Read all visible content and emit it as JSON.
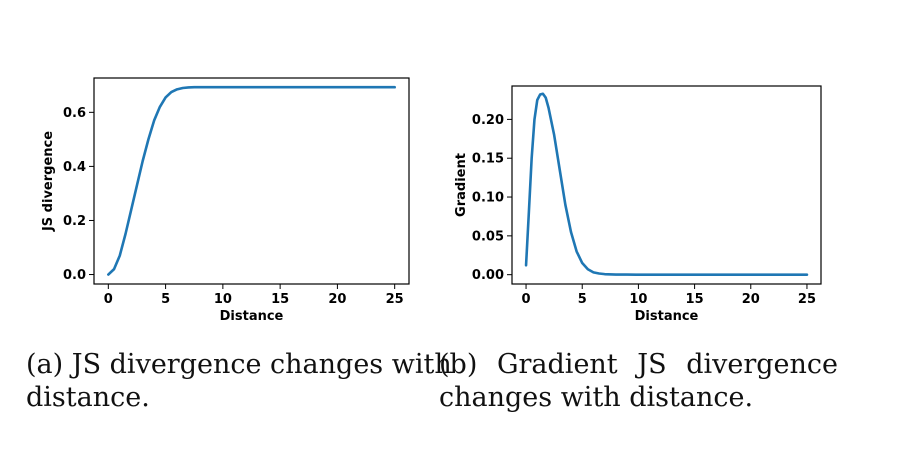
{
  "chart_data": [
    {
      "type": "line",
      "xlabel": "Distance",
      "ylabel": "JS divergence",
      "xlim": [
        -1.25,
        26.25
      ],
      "ylim": [
        -0.035,
        0.727
      ],
      "xticks": [
        0,
        5,
        10,
        15,
        20,
        25
      ],
      "yticks": [
        0.0,
        0.2,
        0.4,
        0.6
      ],
      "ytick_labels": [
        "0.0",
        "0.2",
        "0.4",
        "0.6"
      ],
      "color": "#1f77b4",
      "grid": false,
      "series": [
        {
          "x": [
            0,
            0.5,
            1,
            1.5,
            2,
            2.5,
            3,
            3.5,
            4,
            4.5,
            5,
            5.5,
            6,
            6.5,
            7,
            7.5,
            8,
            9,
            10,
            12,
            15,
            20,
            25
          ],
          "y": [
            0.0,
            0.02,
            0.07,
            0.15,
            0.24,
            0.33,
            0.42,
            0.5,
            0.57,
            0.62,
            0.655,
            0.675,
            0.685,
            0.69,
            0.692,
            0.693,
            0.693,
            0.693,
            0.693,
            0.693,
            0.693,
            0.693,
            0.693
          ]
        }
      ]
    },
    {
      "type": "line",
      "xlabel": "Distance",
      "ylabel": "Gradient",
      "xlim": [
        -1.25,
        26.25
      ],
      "ylim": [
        -0.012,
        0.243
      ],
      "xticks": [
        0,
        5,
        10,
        15,
        20,
        25
      ],
      "yticks": [
        0.0,
        0.05,
        0.1,
        0.15,
        0.2
      ],
      "ytick_labels": [
        "0.00",
        "0.05",
        "0.10",
        "0.15",
        "0.20"
      ],
      "color": "#1f77b4",
      "grid": false,
      "series": [
        {
          "x": [
            0,
            0.25,
            0.5,
            0.75,
            1,
            1.25,
            1.5,
            1.75,
            2,
            2.5,
            3,
            3.5,
            4,
            4.5,
            5,
            5.5,
            6,
            6.5,
            7,
            8,
            9,
            10,
            12,
            15,
            20,
            25
          ],
          "y": [
            0.012,
            0.08,
            0.15,
            0.2,
            0.225,
            0.232,
            0.233,
            0.228,
            0.215,
            0.18,
            0.135,
            0.09,
            0.055,
            0.03,
            0.015,
            0.007,
            0.003,
            0.0015,
            0.0007,
            0.0002,
            0.0001,
            0,
            0,
            0,
            0,
            0
          ]
        }
      ]
    }
  ],
  "captions": {
    "a_line1": "(a) JS divergence changes with",
    "a_line2": "distance.",
    "b_line1_words": [
      "(b)",
      "Gradient",
      "JS",
      "divergence"
    ],
    "b_line2": "changes with distance."
  }
}
